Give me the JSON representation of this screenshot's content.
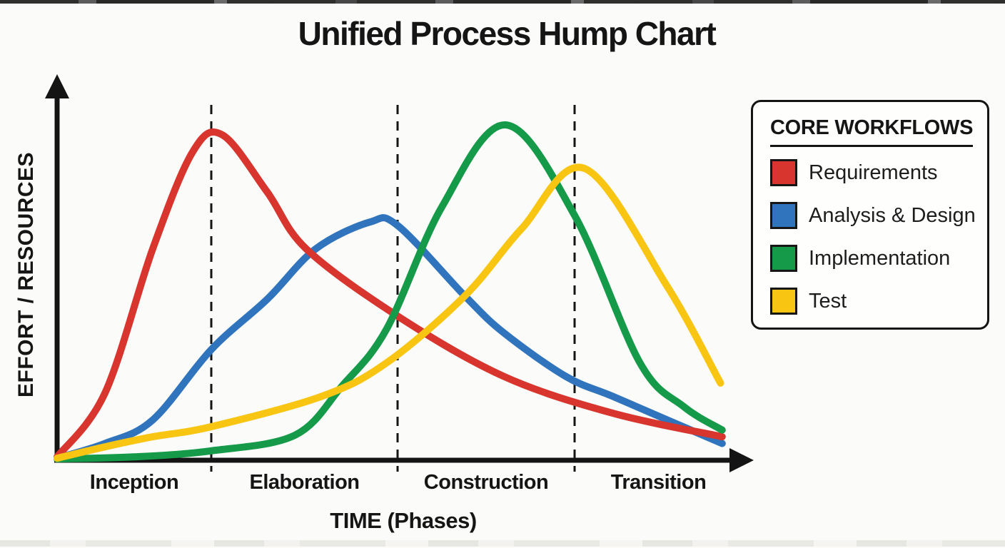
{
  "title": "Unified Process Hump Chart",
  "legend": {
    "title": "CORE WORKFLOWS"
  },
  "chart_data": {
    "type": "line",
    "title": "Unified Process Hump Chart",
    "xlabel": "TIME (Phases)",
    "ylabel": "EFFORT / RESOURCES",
    "x_categories": [
      "Inception",
      "Elaboration",
      "Construction",
      "Transition"
    ],
    "x_unit": "phase timeline (0 = start of Inception, 4 = end of Transition)",
    "y_unit": "relative effort / resources (0-1, estimated from curve heights)",
    "x_range": [
      0,
      4
    ],
    "y_range": [
      0,
      1.05
    ],
    "phase_boundaries": [
      1,
      2,
      3
    ],
    "grid": "dashed vertical lines at phase boundaries only",
    "legend_position": "right-outside",
    "colors": {
      "requirements": "#d7352e",
      "analysis_design": "#2f74bd",
      "implementation": "#149a48",
      "test": "#f8c513",
      "axis": "#141414"
    },
    "series": [
      {
        "name": "Requirements",
        "color": "#d7352e",
        "points": [
          [
            0,
            0.01
          ],
          [
            0.31,
            0.2
          ],
          [
            0.62,
            0.63
          ],
          [
            0.88,
            0.92
          ],
          [
            1.06,
            0.97
          ],
          [
            1.3,
            0.8
          ],
          [
            1.51,
            0.63
          ],
          [
            2.0,
            0.43
          ],
          [
            2.6,
            0.25
          ],
          [
            3.23,
            0.14
          ],
          [
            3.88,
            0.07
          ]
        ]
      },
      {
        "name": "Analysis & Design",
        "color": "#2f74bd",
        "points": [
          [
            0,
            0.006
          ],
          [
            0.31,
            0.05
          ],
          [
            0.62,
            0.12
          ],
          [
            1.0,
            0.33
          ],
          [
            1.3,
            0.48
          ],
          [
            1.56,
            0.63
          ],
          [
            1.85,
            0.71
          ],
          [
            2.0,
            0.7
          ],
          [
            2.38,
            0.49
          ],
          [
            2.6,
            0.38
          ],
          [
            2.95,
            0.25
          ],
          [
            3.23,
            0.19
          ],
          [
            3.6,
            0.11
          ],
          [
            3.88,
            0.05
          ]
        ]
      },
      {
        "name": "Implementation",
        "color": "#149a48",
        "points": [
          [
            0,
            0.004
          ],
          [
            0.5,
            0.01
          ],
          [
            1.0,
            0.028
          ],
          [
            1.45,
            0.075
          ],
          [
            1.7,
            0.22
          ],
          [
            1.94,
            0.39
          ],
          [
            2.25,
            0.755
          ],
          [
            2.61,
            1.0
          ],
          [
            3.0,
            0.73
          ],
          [
            3.39,
            0.29
          ],
          [
            3.65,
            0.16
          ],
          [
            3.88,
            0.09
          ]
        ]
      },
      {
        "name": "Test",
        "color": "#f8c513",
        "points": [
          [
            0,
            0.006
          ],
          [
            0.31,
            0.04
          ],
          [
            0.62,
            0.07
          ],
          [
            1.0,
            0.1
          ],
          [
            1.59,
            0.19
          ],
          [
            1.94,
            0.29
          ],
          [
            2.38,
            0.49
          ],
          [
            2.7,
            0.69
          ],
          [
            3.06,
            0.87
          ],
          [
            3.55,
            0.52
          ],
          [
            3.87,
            0.23
          ]
        ]
      }
    ]
  }
}
